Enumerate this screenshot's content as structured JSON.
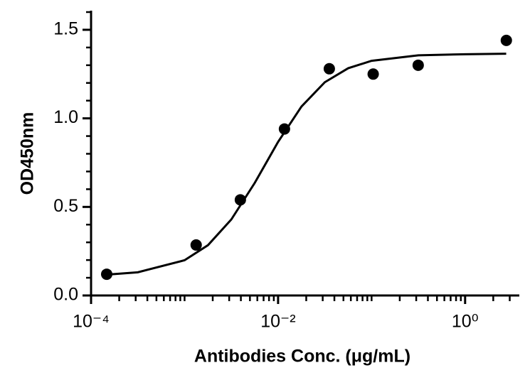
{
  "chart_data": {
    "type": "scatter",
    "xlabel": "Antibodies Conc. (μg/mL)",
    "ylabel": "OD450nm",
    "xscale": "log",
    "xlim": [
      0.0001,
      3.8
    ],
    "ylim": [
      0,
      1.6
    ],
    "xticks": [
      {
        "value": 0.0001,
        "label": "10⁻⁴"
      },
      {
        "value": 0.01,
        "label": "10⁻²"
      },
      {
        "value": 1,
        "label": "10⁰"
      }
    ],
    "xminorticks": [
      0.0002,
      0.0003,
      0.0004,
      0.0005,
      0.0006,
      0.0007,
      0.0008,
      0.0009,
      0.001,
      0.002,
      0.003,
      0.004,
      0.005,
      0.006,
      0.007,
      0.008,
      0.009,
      0.02,
      0.03,
      0.04,
      0.05,
      0.06,
      0.07,
      0.08,
      0.09,
      0.1,
      0.2,
      0.3,
      0.4,
      0.5,
      0.6,
      0.7,
      0.8,
      0.9,
      2,
      3
    ],
    "yticks": [
      {
        "value": 0,
        "label": "0.0"
      },
      {
        "value": 0.5,
        "label": "0.5"
      },
      {
        "value": 1,
        "label": "1.0"
      },
      {
        "value": 1.5,
        "label": "1.5"
      }
    ],
    "yminorticks": [
      0.1,
      0.2,
      0.3,
      0.4,
      0.6,
      0.7,
      0.8,
      0.9,
      1.1,
      1.2,
      1.3,
      1.4,
      1.6
    ],
    "grid": false,
    "series": [
      {
        "type": "scatter",
        "color": "#000000",
        "x": [
          0.000147,
          0.00133,
          0.00395,
          0.0117,
          0.0353,
          0.104,
          0.315,
          2.76
        ],
        "y": [
          0.12,
          0.285,
          0.54,
          0.94,
          1.28,
          1.25,
          1.3,
          1.44
        ]
      },
      {
        "type": "line",
        "color": "#000000",
        "x": [
          0.000148,
          0.000316,
          0.001,
          0.00178,
          0.00316,
          0.00562,
          0.01,
          0.0178,
          0.0316,
          0.0562,
          0.1,
          0.316,
          1,
          2.75
        ],
        "y": [
          0.118,
          0.131,
          0.199,
          0.284,
          0.429,
          0.635,
          0.867,
          1.067,
          1.204,
          1.283,
          1.325,
          1.356,
          1.362,
          1.365
        ]
      }
    ]
  }
}
